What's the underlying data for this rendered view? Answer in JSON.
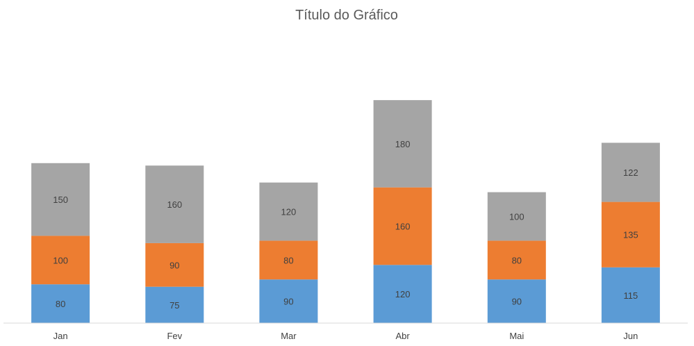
{
  "chart_data": {
    "type": "bar",
    "stacked": true,
    "title": "Título do Gráfico",
    "categories": [
      "Jan",
      "Fev",
      "Mar",
      "Abr",
      "Mai",
      "Jun"
    ],
    "series": [
      {
        "values": [
          80,
          75,
          90,
          120,
          90,
          115
        ],
        "color": "#5b9bd5"
      },
      {
        "values": [
          100,
          90,
          80,
          160,
          80,
          135
        ],
        "color": "#ed7d31"
      },
      {
        "values": [
          150,
          160,
          120,
          180,
          100,
          122
        ],
        "color": "#a5a5a5"
      }
    ],
    "ylim": [
      0,
      460
    ],
    "grid": false,
    "data_labels": true,
    "axis_color": "#d9d9d9"
  }
}
